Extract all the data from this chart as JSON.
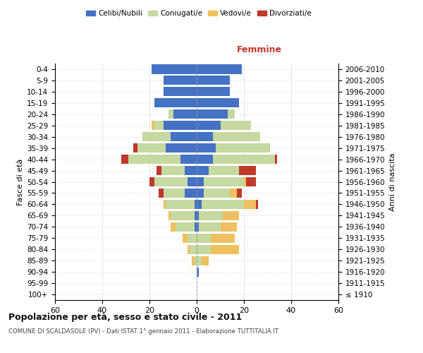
{
  "age_groups": [
    "100+",
    "95-99",
    "90-94",
    "85-89",
    "80-84",
    "75-79",
    "70-74",
    "65-69",
    "60-64",
    "55-59",
    "50-54",
    "45-49",
    "40-44",
    "35-39",
    "30-34",
    "25-29",
    "20-24",
    "15-19",
    "10-14",
    "5-9",
    "0-4"
  ],
  "birth_years": [
    "≤ 1910",
    "1911-1915",
    "1916-1920",
    "1921-1925",
    "1926-1930",
    "1931-1935",
    "1936-1940",
    "1941-1945",
    "1946-1950",
    "1951-1955",
    "1956-1960",
    "1961-1965",
    "1966-1970",
    "1971-1975",
    "1976-1980",
    "1981-1985",
    "1986-1990",
    "1991-1995",
    "1996-2000",
    "2001-2005",
    "2006-2010"
  ],
  "male": {
    "celibe": [
      0,
      0,
      0,
      0,
      0,
      0,
      1,
      1,
      1,
      5,
      4,
      5,
      7,
      13,
      11,
      14,
      10,
      18,
      14,
      14,
      19
    ],
    "coniugato": [
      0,
      0,
      0,
      1,
      3,
      4,
      8,
      10,
      12,
      9,
      14,
      10,
      22,
      12,
      12,
      4,
      2,
      0,
      0,
      0,
      0
    ],
    "vedovo": [
      0,
      0,
      0,
      1,
      1,
      2,
      2,
      1,
      1,
      0,
      0,
      0,
      0,
      0,
      0,
      1,
      0,
      0,
      0,
      0,
      0
    ],
    "divorziato": [
      0,
      0,
      0,
      0,
      0,
      0,
      0,
      0,
      0,
      2,
      2,
      2,
      3,
      2,
      0,
      0,
      0,
      0,
      0,
      0,
      0
    ]
  },
  "female": {
    "nubile": [
      0,
      0,
      1,
      0,
      0,
      0,
      1,
      1,
      2,
      3,
      3,
      5,
      7,
      8,
      7,
      10,
      13,
      18,
      14,
      14,
      19
    ],
    "coniugata": [
      0,
      0,
      0,
      2,
      6,
      6,
      9,
      10,
      18,
      11,
      17,
      13,
      26,
      23,
      20,
      13,
      3,
      0,
      0,
      0,
      0
    ],
    "vedova": [
      0,
      0,
      0,
      3,
      12,
      10,
      7,
      7,
      5,
      3,
      1,
      0,
      0,
      0,
      0,
      0,
      0,
      0,
      0,
      0,
      0
    ],
    "divorziata": [
      0,
      0,
      0,
      0,
      0,
      0,
      0,
      0,
      1,
      2,
      4,
      7,
      1,
      0,
      0,
      0,
      0,
      0,
      0,
      0,
      0
    ]
  },
  "colors": {
    "celibe": "#4472c4",
    "coniugato": "#c5d9a0",
    "vedovo": "#f0c060",
    "divorziato": "#c0392b"
  },
  "xlim": 60,
  "title": "Popolazione per età, sesso e stato civile - 2011",
  "subtitle": "COMUNE DI SCALDASOLE (PV) - Dati ISTAT 1° gennaio 2011 - Elaborazione TUTTITALIA.IT",
  "ylabel": "Fasce di età",
  "ylabel_right": "Anni di nascita",
  "xlabel_right": "Femmine",
  "legend_labels": [
    "Celibi/Nubili",
    "Coniugati/e",
    "Vedovi/e",
    "Divorziati/e"
  ]
}
